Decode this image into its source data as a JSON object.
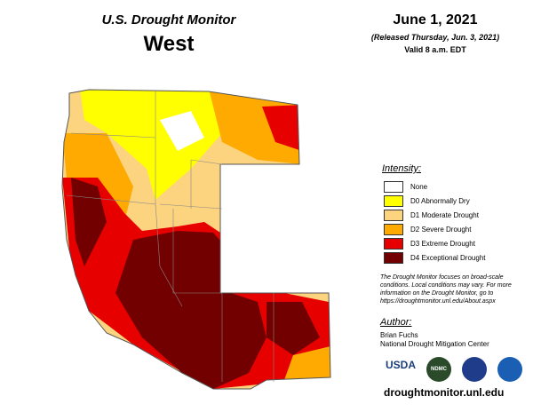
{
  "header": {
    "title": "U.S. Drought Monitor",
    "region": "West",
    "date": "June 1, 2021",
    "released": "(Released Thursday, Jun. 3, 2021)",
    "valid": "Valid 8 a.m. EDT"
  },
  "legend": {
    "title": "Intensity:",
    "items": [
      {
        "label": "None",
        "color": "#ffffff"
      },
      {
        "label": "D0 Abnormally Dry",
        "color": "#ffff00"
      },
      {
        "label": "D1 Moderate Drought",
        "color": "#fcd37f"
      },
      {
        "label": "D2 Severe Drought",
        "color": "#ffaa00"
      },
      {
        "label": "D3 Extreme Drought",
        "color": "#e60000"
      },
      {
        "label": "D4 Exceptional Drought",
        "color": "#730000"
      }
    ]
  },
  "note": "The Drought Monitor focuses on broad-scale conditions. Local conditions may vary. For more information on the Drought Monitor, go to https://droughtmonitor.unl.edu/About.aspx",
  "author": {
    "heading": "Author:",
    "name": "Brian Fuchs",
    "organization": "National Drought Mitigation Center"
  },
  "logos": [
    "USDA",
    "NDMC"
  ],
  "website": "droughtmonitor.unl.edu"
}
